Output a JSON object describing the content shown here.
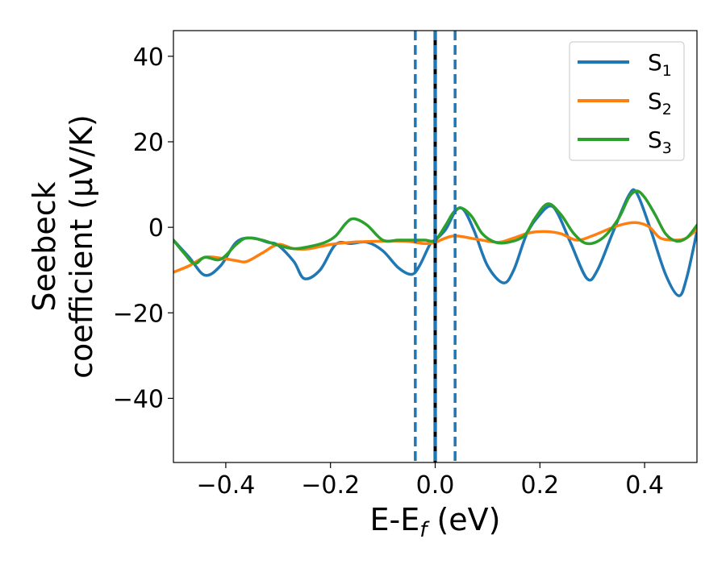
{
  "chart_data": {
    "type": "line",
    "xlabel": "E-E",
    "xlabel_sub": "f",
    "xlabel_unit": " (eV)",
    "ylabel_line1": "Seebeck",
    "ylabel_line2": "coefficient  (μV/K)",
    "xlim": [
      -0.5,
      0.5
    ],
    "ylim": [
      -55,
      46
    ],
    "xticks": [
      -0.4,
      -0.2,
      0.0,
      0.2,
      0.4
    ],
    "xtick_labels": [
      "−0.4",
      "−0.2",
      "0.0",
      "0.2",
      "0.4"
    ],
    "yticks": [
      40,
      20,
      0,
      -20,
      -40
    ],
    "ytick_labels": [
      "40",
      "20",
      "0",
      "−20",
      "−40"
    ],
    "grid": false,
    "legend_position": "top-right",
    "vlines": [
      {
        "x": 0.0,
        "style": "solid-black",
        "color": "#000000"
      },
      {
        "x": 0.0,
        "style": "dashed",
        "color": "#1f77b4"
      },
      {
        "x": -0.038,
        "style": "dashed",
        "color": "#1f77b4"
      },
      {
        "x": 0.038,
        "style": "dashed",
        "color": "#1f77b4"
      }
    ],
    "series": [
      {
        "name": "S",
        "sub": "1",
        "color": "#1f77b4",
        "points": [
          [
            -0.5,
            -3
          ],
          [
            -0.47,
            -7
          ],
          [
            -0.44,
            -11.2
          ],
          [
            -0.41,
            -9
          ],
          [
            -0.38,
            -3.5
          ],
          [
            -0.35,
            -2.5
          ],
          [
            -0.32,
            -3.5
          ],
          [
            -0.3,
            -4.2
          ],
          [
            -0.27,
            -8
          ],
          [
            -0.25,
            -12
          ],
          [
            -0.22,
            -10
          ],
          [
            -0.19,
            -4
          ],
          [
            -0.16,
            -3.8
          ],
          [
            -0.13,
            -3.5
          ],
          [
            -0.1,
            -5.5
          ],
          [
            -0.07,
            -9.5
          ],
          [
            -0.045,
            -11
          ],
          [
            -0.03,
            -9
          ],
          [
            -0.01,
            -4
          ],
          [
            0.0,
            -3
          ],
          [
            0.02,
            -0.5
          ],
          [
            0.04,
            4
          ],
          [
            0.055,
            4
          ],
          [
            0.075,
            -1
          ],
          [
            0.1,
            -9
          ],
          [
            0.13,
            -13
          ],
          [
            0.15,
            -10
          ],
          [
            0.175,
            -1.5
          ],
          [
            0.2,
            3
          ],
          [
            0.22,
            5
          ],
          [
            0.235,
            3
          ],
          [
            0.26,
            -4
          ],
          [
            0.29,
            -12
          ],
          [
            0.31,
            -10
          ],
          [
            0.34,
            -1
          ],
          [
            0.37,
            7.5
          ],
          [
            0.385,
            8
          ],
          [
            0.41,
            0
          ],
          [
            0.44,
            -11
          ],
          [
            0.465,
            -16
          ],
          [
            0.48,
            -12
          ],
          [
            0.5,
            -1
          ]
        ]
      },
      {
        "name": "S",
        "sub": "2",
        "color": "#ff7f0e",
        "points": [
          [
            -0.5,
            -10.5
          ],
          [
            -0.47,
            -9
          ],
          [
            -0.44,
            -7
          ],
          [
            -0.41,
            -7.2
          ],
          [
            -0.38,
            -7.8
          ],
          [
            -0.36,
            -8
          ],
          [
            -0.33,
            -6
          ],
          [
            -0.3,
            -4
          ],
          [
            -0.27,
            -5
          ],
          [
            -0.24,
            -5
          ],
          [
            -0.2,
            -4
          ],
          [
            -0.16,
            -3.5
          ],
          [
            -0.12,
            -3.3
          ],
          [
            -0.08,
            -3.2
          ],
          [
            -0.05,
            -3.3
          ],
          [
            -0.02,
            -3.8
          ],
          [
            0.0,
            -3.5
          ],
          [
            0.02,
            -2.5
          ],
          [
            0.04,
            -2
          ],
          [
            0.08,
            -2.8
          ],
          [
            0.12,
            -3.5
          ],
          [
            0.15,
            -2.5
          ],
          [
            0.18,
            -1.3
          ],
          [
            0.21,
            -1
          ],
          [
            0.24,
            -1.5
          ],
          [
            0.27,
            -3
          ],
          [
            0.3,
            -2
          ],
          [
            0.34,
            0
          ],
          [
            0.37,
            1
          ],
          [
            0.39,
            1
          ],
          [
            0.41,
            0
          ],
          [
            0.43,
            -2.5
          ],
          [
            0.46,
            -3
          ],
          [
            0.48,
            -2.5
          ],
          [
            0.5,
            -0.5
          ]
        ]
      },
      {
        "name": "S",
        "sub": "3",
        "color": "#2ca02c",
        "points": [
          [
            -0.5,
            -3
          ],
          [
            -0.48,
            -6
          ],
          [
            -0.46,
            -8.5
          ],
          [
            -0.44,
            -7
          ],
          [
            -0.41,
            -7.5
          ],
          [
            -0.38,
            -4
          ],
          [
            -0.36,
            -2.5
          ],
          [
            -0.33,
            -3
          ],
          [
            -0.3,
            -4.2
          ],
          [
            -0.27,
            -5
          ],
          [
            -0.24,
            -4.5
          ],
          [
            -0.21,
            -3.5
          ],
          [
            -0.19,
            -2
          ],
          [
            -0.17,
            1
          ],
          [
            -0.155,
            2
          ],
          [
            -0.13,
            0.5
          ],
          [
            -0.1,
            -3
          ],
          [
            -0.07,
            -3
          ],
          [
            -0.04,
            -3
          ],
          [
            -0.02,
            -3
          ],
          [
            0.0,
            -3
          ],
          [
            0.02,
            0.5
          ],
          [
            0.035,
            3.5
          ],
          [
            0.05,
            4.5
          ],
          [
            0.07,
            2.5
          ],
          [
            0.09,
            -1.5
          ],
          [
            0.115,
            -3.5
          ],
          [
            0.14,
            -3.5
          ],
          [
            0.17,
            -2
          ],
          [
            0.19,
            2
          ],
          [
            0.215,
            5.5
          ],
          [
            0.24,
            3
          ],
          [
            0.265,
            -1.5
          ],
          [
            0.29,
            -3.8
          ],
          [
            0.32,
            -2.5
          ],
          [
            0.35,
            2
          ],
          [
            0.37,
            7
          ],
          [
            0.385,
            8.5
          ],
          [
            0.4,
            7
          ],
          [
            0.42,
            3
          ],
          [
            0.44,
            -1.5
          ],
          [
            0.46,
            -3.2
          ],
          [
            0.48,
            -2.5
          ],
          [
            0.5,
            0.5
          ]
        ]
      }
    ]
  }
}
